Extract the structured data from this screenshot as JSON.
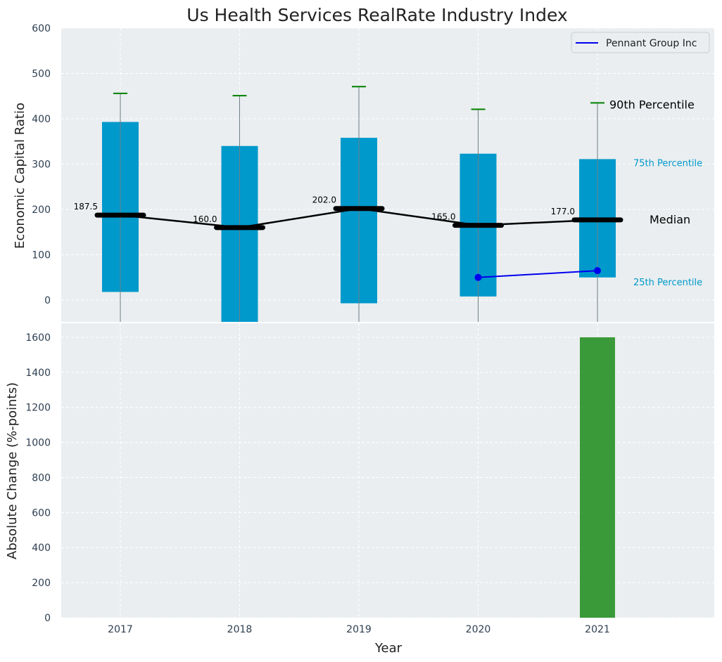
{
  "chart_data": [
    {
      "type": "box",
      "title": "Us Health Services RealRate Industry Index",
      "ylabel": "Economic Capital Ratio",
      "ylim": [
        -48,
        600
      ],
      "yticks": [
        "0",
        "100",
        "200",
        "300",
        "400",
        "500",
        "600"
      ],
      "categories": [
        "2017",
        "2018",
        "2019",
        "2020",
        "2021"
      ],
      "p25": [
        18,
        -50,
        -7,
        8,
        50
      ],
      "p75": [
        393,
        340,
        358,
        323,
        311
      ],
      "p90": [
        456,
        451,
        471,
        421,
        435
      ],
      "median": [
        187.5,
        160.0,
        202.0,
        165.0,
        177.0
      ],
      "median_labels": [
        "187.5",
        "160.0",
        "202.0",
        "165.0",
        "177.0"
      ],
      "series": [
        {
          "name": "Pennant Group Inc",
          "x": [
            "2020",
            "2021"
          ],
          "values": [
            50,
            65
          ],
          "color": "#0000ee"
        }
      ],
      "annotations": {
        "p90": "90th Percentile",
        "p75": "75th Percentile",
        "median": "Median",
        "p25": "25th Percentile"
      },
      "colors": {
        "box": "#0099cc",
        "whisker_cap": "#008000",
        "median": "#000000",
        "background": "#eaeef0"
      },
      "grid": true,
      "legend_position": "top-right"
    },
    {
      "type": "bar",
      "xlabel": "Year",
      "ylabel": "Absolute Change (%-points)",
      "ylim": [
        0,
        1680
      ],
      "yticks": [
        "0",
        "200",
        "400",
        "600",
        "800",
        "1000",
        "1200",
        "1400",
        "1600"
      ],
      "categories": [
        "2017",
        "2018",
        "2019",
        "2020",
        "2021"
      ],
      "values": [
        0,
        0,
        0,
        0,
        1600
      ],
      "colors": {
        "bar": "#3a9a3a",
        "background": "#eaeef0"
      },
      "grid": true
    }
  ]
}
